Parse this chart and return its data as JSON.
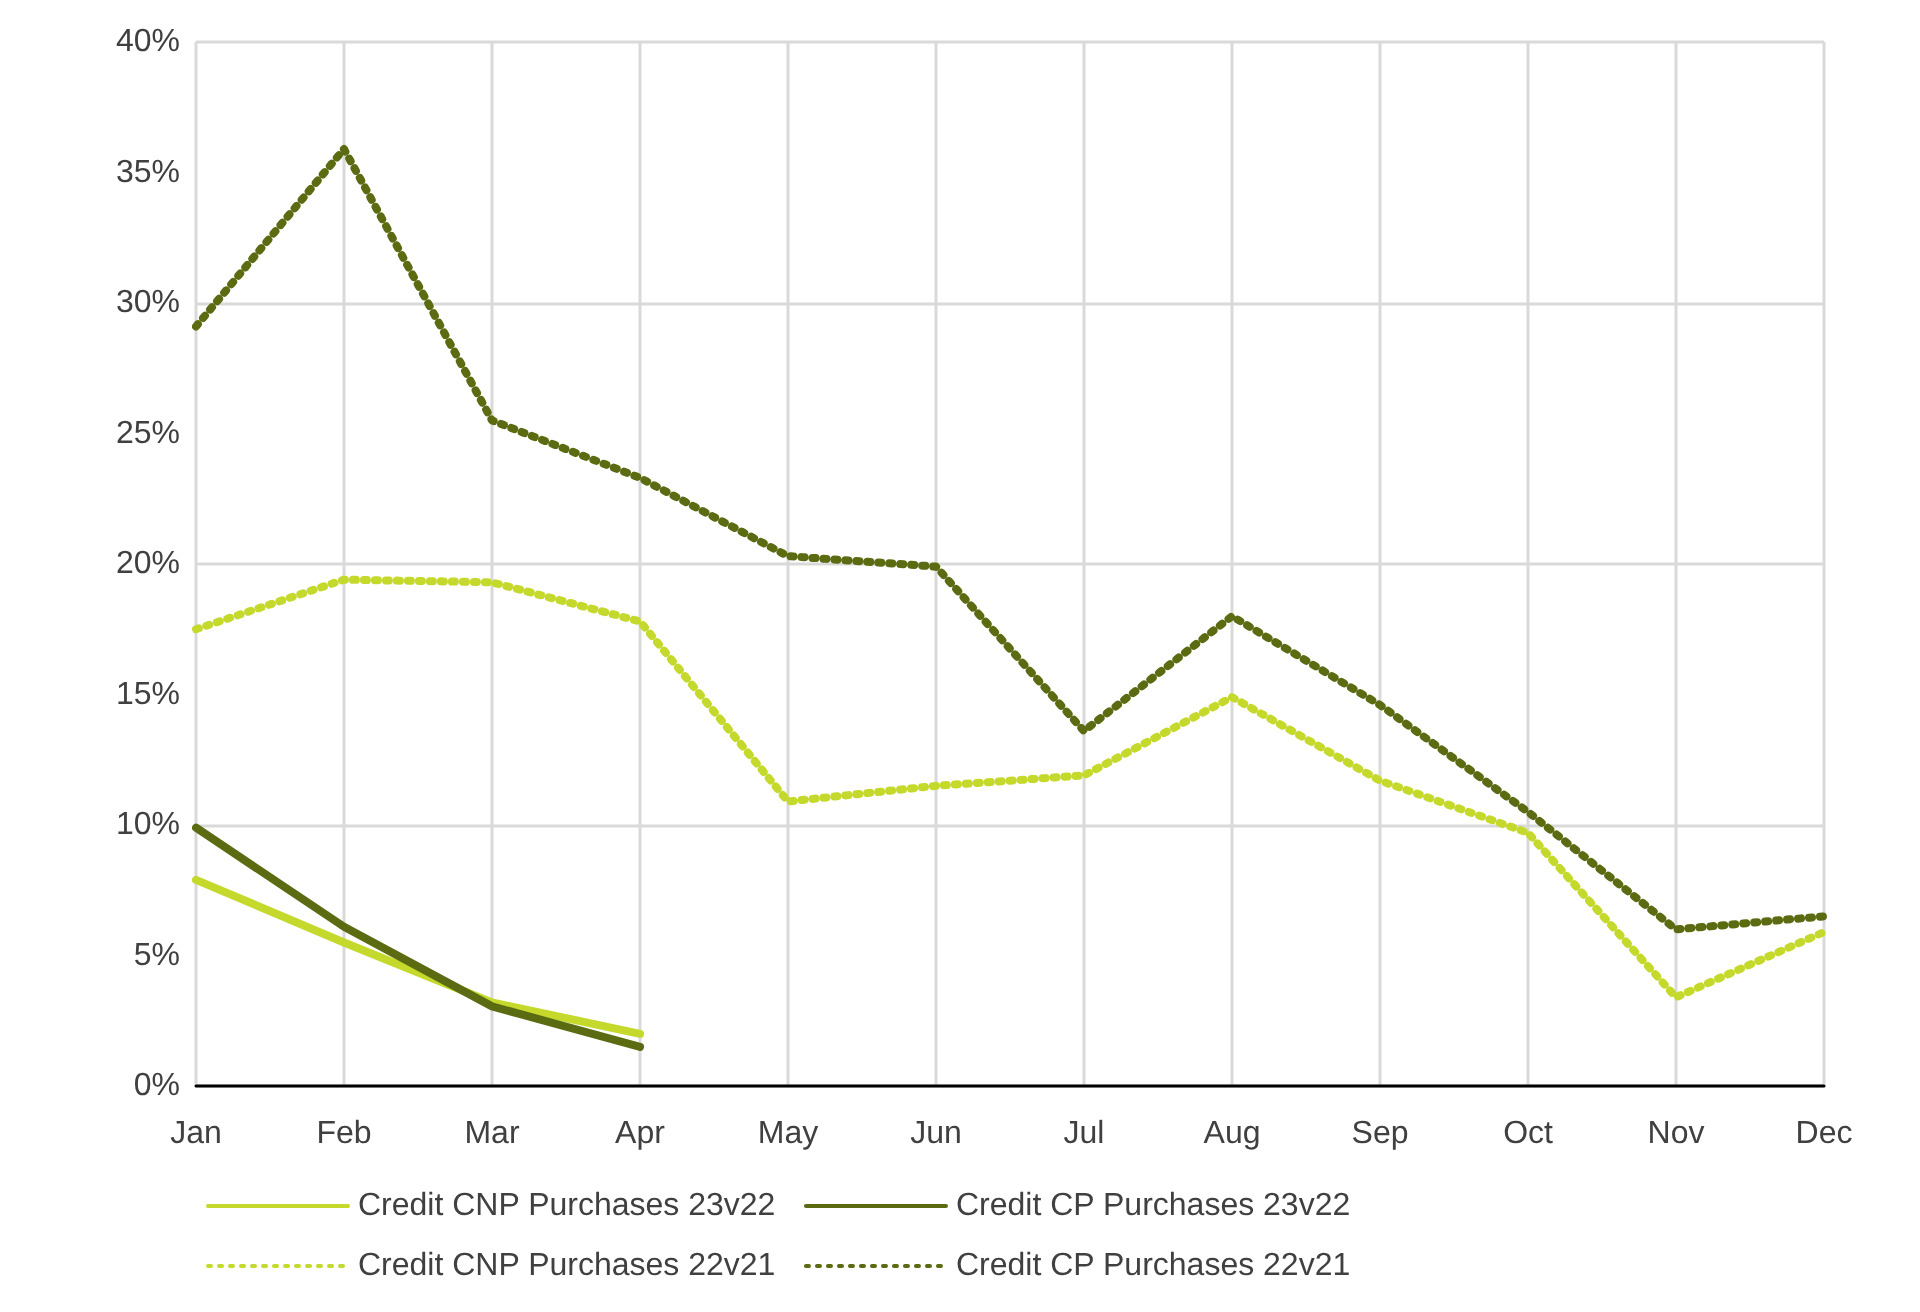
{
  "chart_data": {
    "type": "line",
    "categories": [
      "Jan",
      "Feb",
      "Mar",
      "Apr",
      "May",
      "Jun",
      "Jul",
      "Aug",
      "Sep",
      "Oct",
      "Nov",
      "Dec"
    ],
    "series": [
      {
        "name": "Credit CNP Purchases 23v22",
        "color": "#c5d92d",
        "line_style": "solid",
        "values": [
          7.9,
          5.5,
          3.2,
          2.0,
          null,
          null,
          null,
          null,
          null,
          null,
          null,
          null
        ]
      },
      {
        "name": "Credit CP Purchases 23v22",
        "color": "#5a6b12",
        "line_style": "solid",
        "values": [
          9.9,
          6.1,
          3.05,
          1.5,
          null,
          null,
          null,
          null,
          null,
          null,
          null,
          null
        ]
      },
      {
        "name": "Credit CNP Purchases 22v21",
        "color": "#c5d92d",
        "line_style": "dotted",
        "values": [
          17.5,
          19.4,
          19.3,
          17.8,
          10.9,
          11.5,
          11.9,
          14.9,
          11.7,
          9.7,
          3.4,
          5.9
        ]
      },
      {
        "name": "Credit CP Purchases 22v21",
        "color": "#5a6b12",
        "line_style": "dotted",
        "values": [
          29.1,
          35.9,
          25.5,
          23.3,
          20.3,
          19.9,
          13.6,
          18.0,
          14.6,
          10.5,
          6.0,
          6.5
        ]
      }
    ],
    "ylim": [
      0,
      40
    ],
    "yticks": [
      {
        "value": 0,
        "label": "0%"
      },
      {
        "value": 5,
        "label": "5%"
      },
      {
        "value": 10,
        "label": "10%"
      },
      {
        "value": 15,
        "label": "15%"
      },
      {
        "value": 20,
        "label": "20%"
      },
      {
        "value": 25,
        "label": "25%"
      },
      {
        "value": 30,
        "label": "30%"
      },
      {
        "value": 35,
        "label": "35%"
      },
      {
        "value": 40,
        "label": "40%"
      }
    ],
    "grid": true,
    "legend": "bottom",
    "marker": "none"
  }
}
